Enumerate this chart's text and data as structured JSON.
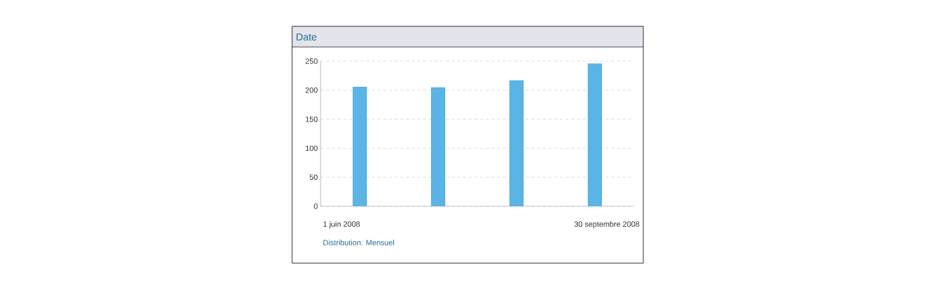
{
  "chart_data": {
    "type": "bar",
    "title": "Date",
    "categories": [
      null,
      null,
      null,
      null
    ],
    "values": [
      206,
      205,
      217,
      246
    ],
    "color": "#5ab4e5",
    "ylim": [
      0,
      250
    ],
    "yticks": [
      0,
      50,
      100,
      150,
      200,
      250
    ],
    "grid": "y",
    "annotations": [
      "1 juin 2008",
      "30 septembre 2008",
      "Distribution: Mensuel"
    ]
  }
}
